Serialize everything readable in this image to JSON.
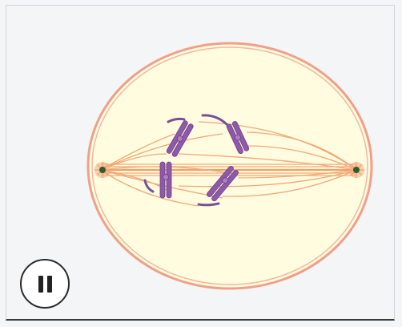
{
  "animation": {
    "state": "playing",
    "phase": "prometaphase",
    "controls": {
      "pause_button_icon": "pause-icon"
    }
  },
  "colors": {
    "cell_fill": "#fffce0",
    "cell_membrane": "#f0a088",
    "spindle_fiber": "#f2a06c",
    "chromosome": "#8e5aa8",
    "centrosome": "#2f5e2a",
    "background": "#f4f5f6"
  }
}
